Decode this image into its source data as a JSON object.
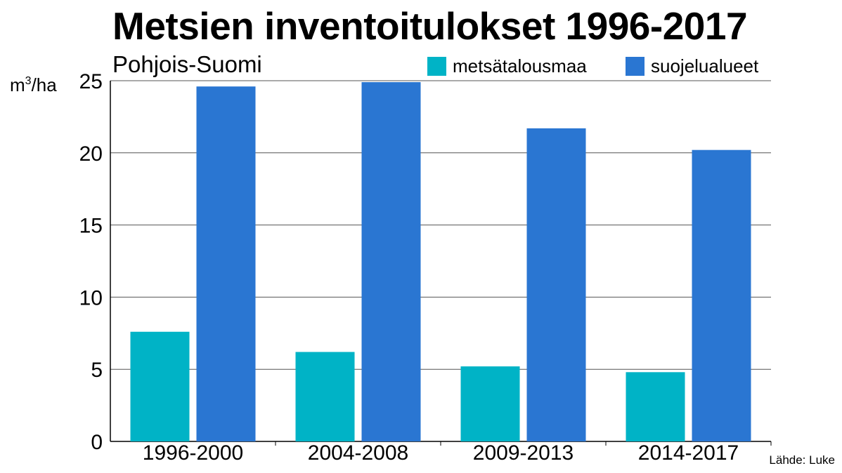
{
  "chart_data": {
    "type": "bar",
    "title": "Metsien inventoitulokset 1996-2017",
    "subtitle": "Pohjois-Suomi",
    "ylabel_unit": "m³/ha",
    "ylabel_base": "m",
    "ylabel_sup": "3",
    "ylabel_suffix": "/ha",
    "xlabel": "",
    "ylim": [
      0,
      25
    ],
    "yticks": [
      "0",
      "5",
      "10",
      "15",
      "20",
      "25"
    ],
    "grid": true,
    "legend_position": "top-right",
    "categories": [
      "1996-2000",
      "2004-2008",
      "2009-2013",
      "2014-2017"
    ],
    "series": [
      {
        "name": "metsätalousmaa",
        "color": "#00b3c6",
        "values": [
          7.6,
          6.2,
          5.2,
          4.8
        ]
      },
      {
        "name": "suojelualueet",
        "color": "#2a76d2",
        "values": [
          24.6,
          24.9,
          21.7,
          20.2
        ]
      }
    ],
    "source": "Lähde: Luke"
  }
}
